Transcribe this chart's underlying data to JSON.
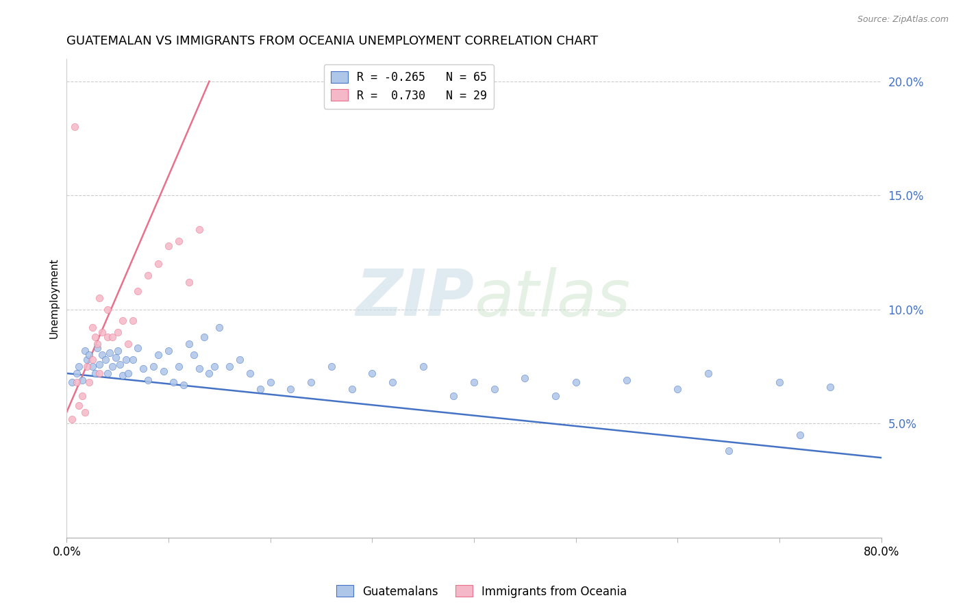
{
  "title": "GUATEMALAN VS IMMIGRANTS FROM OCEANIA UNEMPLOYMENT CORRELATION CHART",
  "source": "Source: ZipAtlas.com",
  "ylabel": "Unemployment",
  "watermark_zip": "ZIP",
  "watermark_atlas": "atlas",
  "legend_blue_r": "R = -0.265",
  "legend_blue_n": "N = 65",
  "legend_pink_r": "R =  0.730",
  "legend_pink_n": "N = 29",
  "blue_color": "#aec6e8",
  "pink_color": "#f5b8c8",
  "line_blue": "#4472c4",
  "line_pink": "#e8708a",
  "blue_scatter": [
    [
      0.5,
      6.8
    ],
    [
      1.0,
      7.2
    ],
    [
      1.2,
      7.5
    ],
    [
      1.5,
      6.9
    ],
    [
      1.8,
      8.2
    ],
    [
      2.0,
      7.8
    ],
    [
      2.2,
      8.0
    ],
    [
      2.5,
      7.5
    ],
    [
      2.8,
      7.2
    ],
    [
      3.0,
      8.3
    ],
    [
      3.2,
      7.6
    ],
    [
      3.5,
      8.0
    ],
    [
      3.8,
      7.8
    ],
    [
      4.0,
      7.2
    ],
    [
      4.2,
      8.1
    ],
    [
      4.5,
      7.5
    ],
    [
      4.8,
      7.9
    ],
    [
      5.0,
      8.2
    ],
    [
      5.2,
      7.6
    ],
    [
      5.5,
      7.1
    ],
    [
      5.8,
      7.8
    ],
    [
      6.0,
      7.2
    ],
    [
      6.5,
      7.8
    ],
    [
      7.0,
      8.3
    ],
    [
      7.5,
      7.4
    ],
    [
      8.0,
      6.9
    ],
    [
      8.5,
      7.5
    ],
    [
      9.0,
      8.0
    ],
    [
      9.5,
      7.3
    ],
    [
      10.0,
      8.2
    ],
    [
      10.5,
      6.8
    ],
    [
      11.0,
      7.5
    ],
    [
      11.5,
      6.7
    ],
    [
      12.0,
      8.5
    ],
    [
      12.5,
      8.0
    ],
    [
      13.0,
      7.4
    ],
    [
      13.5,
      8.8
    ],
    [
      14.0,
      7.2
    ],
    [
      14.5,
      7.5
    ],
    [
      15.0,
      9.2
    ],
    [
      16.0,
      7.5
    ],
    [
      17.0,
      7.8
    ],
    [
      18.0,
      7.2
    ],
    [
      19.0,
      6.5
    ],
    [
      20.0,
      6.8
    ],
    [
      22.0,
      6.5
    ],
    [
      24.0,
      6.8
    ],
    [
      26.0,
      7.5
    ],
    [
      28.0,
      6.5
    ],
    [
      30.0,
      7.2
    ],
    [
      32.0,
      6.8
    ],
    [
      35.0,
      7.5
    ],
    [
      38.0,
      6.2
    ],
    [
      40.0,
      6.8
    ],
    [
      42.0,
      6.5
    ],
    [
      45.0,
      7.0
    ],
    [
      48.0,
      6.2
    ],
    [
      50.0,
      6.8
    ],
    [
      55.0,
      6.9
    ],
    [
      60.0,
      6.5
    ],
    [
      63.0,
      7.2
    ],
    [
      65.0,
      3.8
    ],
    [
      70.0,
      6.8
    ],
    [
      72.0,
      4.5
    ],
    [
      75.0,
      6.6
    ]
  ],
  "pink_scatter": [
    [
      0.5,
      5.2
    ],
    [
      1.0,
      6.8
    ],
    [
      1.2,
      5.8
    ],
    [
      1.5,
      6.2
    ],
    [
      1.8,
      5.5
    ],
    [
      2.0,
      7.5
    ],
    [
      2.2,
      6.8
    ],
    [
      2.5,
      7.8
    ],
    [
      2.8,
      8.8
    ],
    [
      3.0,
      8.5
    ],
    [
      3.2,
      7.2
    ],
    [
      3.5,
      9.0
    ],
    [
      4.0,
      8.8
    ],
    [
      4.5,
      8.8
    ],
    [
      5.0,
      9.0
    ],
    [
      5.5,
      9.5
    ],
    [
      6.0,
      8.5
    ],
    [
      6.5,
      9.5
    ],
    [
      7.0,
      10.8
    ],
    [
      8.0,
      11.5
    ],
    [
      9.0,
      12.0
    ],
    [
      10.0,
      12.8
    ],
    [
      11.0,
      13.0
    ],
    [
      12.0,
      11.2
    ],
    [
      13.0,
      13.5
    ],
    [
      0.8,
      18.0
    ],
    [
      3.2,
      10.5
    ],
    [
      4.0,
      10.0
    ],
    [
      2.5,
      9.2
    ]
  ],
  "blue_line_x": [
    0.0,
    80.0
  ],
  "blue_line_y": [
    7.2,
    3.5
  ],
  "pink_line_x": [
    0.0,
    14.0
  ],
  "pink_line_y": [
    5.5,
    20.0
  ],
  "xmin": 0.0,
  "xmax": 80.0,
  "ymin": 0.0,
  "ymax": 21.0,
  "ytick_vals": [
    5.0,
    10.0,
    15.0,
    20.0
  ],
  "ytick_labels": [
    "5.0%",
    "10.0%",
    "15.0%",
    "20.0%"
  ]
}
